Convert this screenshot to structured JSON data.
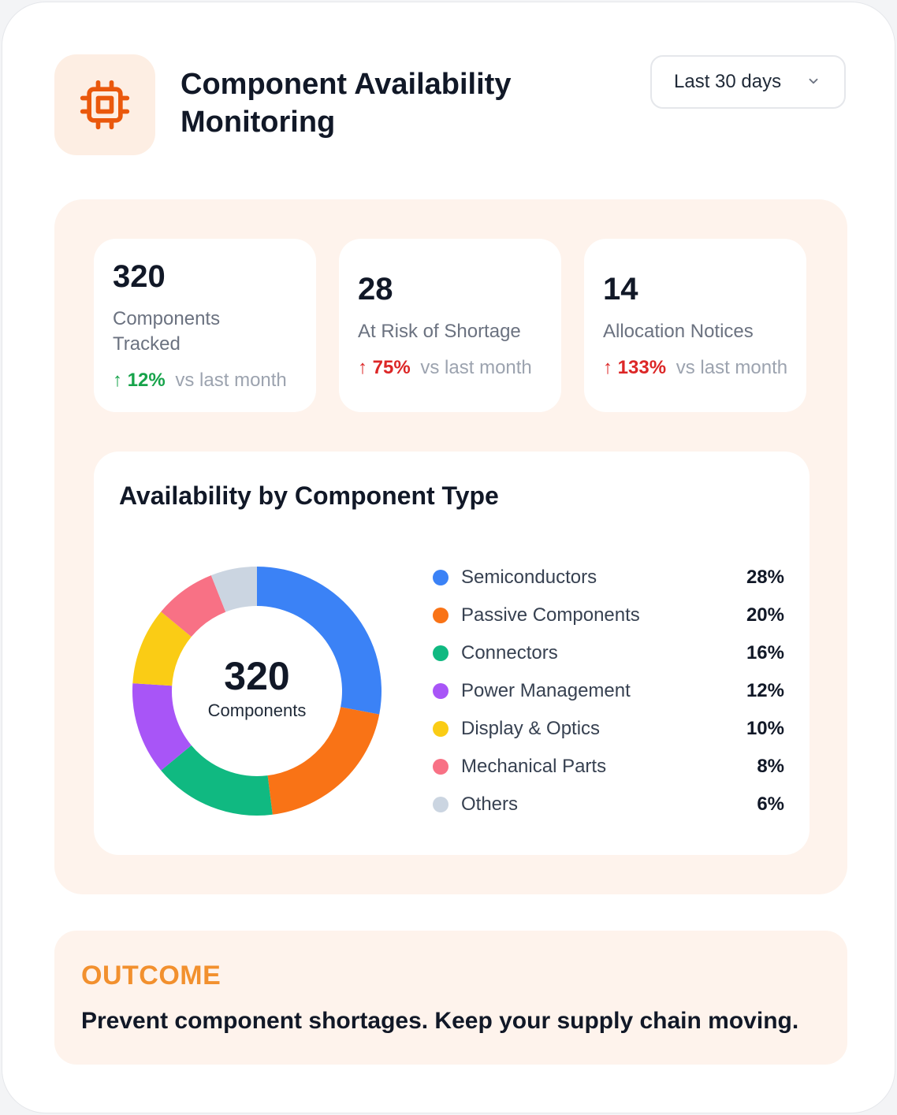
{
  "header": {
    "title": "Component Availability Monitoring",
    "icon": "chip-icon",
    "range_select": {
      "value": "Last 30 days",
      "icon": "chevron-down-icon"
    }
  },
  "stats": [
    {
      "value": "320",
      "label": "Components Tracked",
      "delta": "12%",
      "delta_suffix": "vs last month",
      "trend": "up",
      "color": "#16a34a"
    },
    {
      "value": "28",
      "label": "At Risk of Shortage",
      "delta": "75%",
      "delta_suffix": "vs last month",
      "trend": "up",
      "color": "#dc2626"
    },
    {
      "value": "14",
      "label": "Allocation Notices",
      "delta": "133%",
      "delta_suffix": "vs last month",
      "trend": "up",
      "color": "#dc2626"
    }
  ],
  "chart_data": {
    "type": "pie",
    "title": "Availability by Component Type",
    "center_value": "320",
    "center_label": "Components",
    "categories": [
      "Semiconductors",
      "Passive Components",
      "Connectors",
      "Power Management",
      "Display & Optics",
      "Mechanical Parts",
      "Others"
    ],
    "values": [
      28,
      20,
      16,
      12,
      10,
      8,
      6
    ],
    "labels": [
      "28%",
      "20%",
      "16%",
      "12%",
      "10%",
      "8%",
      "6%"
    ],
    "colors": [
      "#3b82f6",
      "#f97316",
      "#10b981",
      "#a855f7",
      "#facc15",
      "#f87185",
      "#cbd5e1"
    ],
    "legend": "right"
  },
  "outcome": {
    "label": "OUTCOME",
    "text": "Prevent component shortages. Keep your supply chain moving."
  },
  "colors": {
    "accent": "#ea580c",
    "panel": "#fef3ec"
  }
}
